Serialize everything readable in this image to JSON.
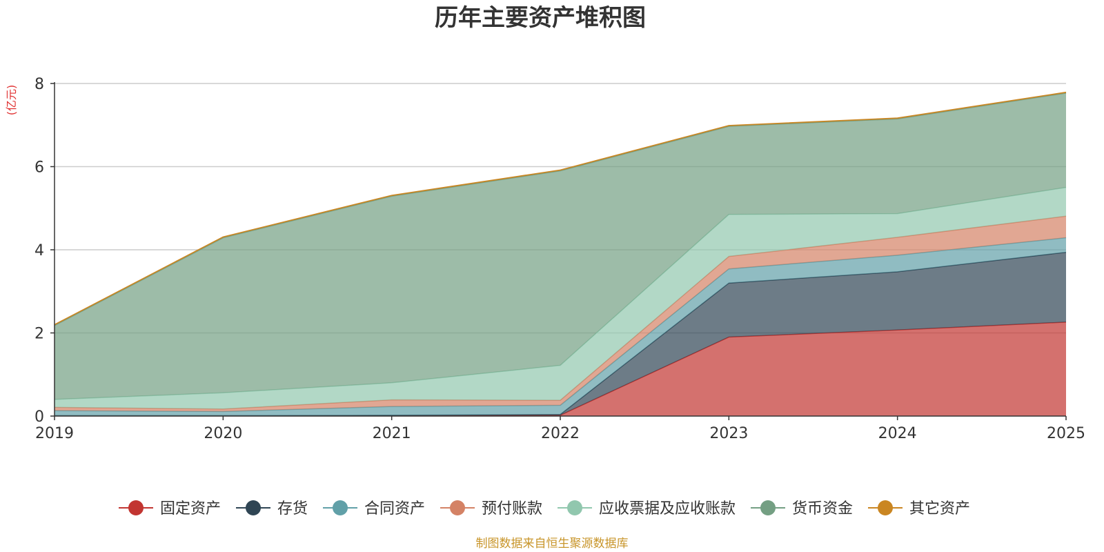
{
  "chart_data": {
    "type": "area",
    "stacked": true,
    "title": "历年主要资产堆积图",
    "unit_label": "(亿元)",
    "xlabel": "",
    "ylabel": "(亿元)",
    "categories": [
      "2019",
      "2020",
      "2021",
      "2022",
      "2023",
      "2024",
      "2025"
    ],
    "ylim": [
      0,
      8
    ],
    "yticks": [
      "0",
      "2",
      "4",
      "6",
      "8"
    ],
    "grid": true,
    "legend_position": "bottom",
    "series": [
      {
        "name": "固定资产",
        "color": "#c23531",
        "values": [
          0.01,
          0.01,
          0.02,
          0.02,
          1.9,
          2.07,
          2.26
        ]
      },
      {
        "name": "存货",
        "color": "#2f4554",
        "values": [
          0.0,
          0.0,
          0.0,
          0.02,
          1.3,
          1.4,
          1.68
        ]
      },
      {
        "name": "合同资产",
        "color": "#61a0a8",
        "values": [
          0.12,
          0.1,
          0.21,
          0.22,
          0.34,
          0.4,
          0.35
        ]
      },
      {
        "name": "预付账款",
        "color": "#d48265",
        "values": [
          0.08,
          0.06,
          0.16,
          0.12,
          0.3,
          0.43,
          0.52
        ]
      },
      {
        "name": "应收票据及应收账款",
        "color": "#91c7ae",
        "values": [
          0.19,
          0.39,
          0.41,
          0.84,
          1.01,
          0.57,
          0.69
        ]
      },
      {
        "name": "货币资金",
        "color": "#749f83",
        "values": [
          1.78,
          3.73,
          4.49,
          4.68,
          2.12,
          2.28,
          2.27
        ]
      },
      {
        "name": "其它资产",
        "color": "#ca8622",
        "values": [
          0.02,
          0.02,
          0.02,
          0.02,
          0.02,
          0.02,
          0.02
        ]
      }
    ]
  },
  "colors": {
    "title": "#333333",
    "unit_label": "#e03030",
    "source": "#c8952a",
    "grid": "#cccccc",
    "axis": "#333333"
  },
  "source_text": "制图数据来自恒生聚源数据库"
}
